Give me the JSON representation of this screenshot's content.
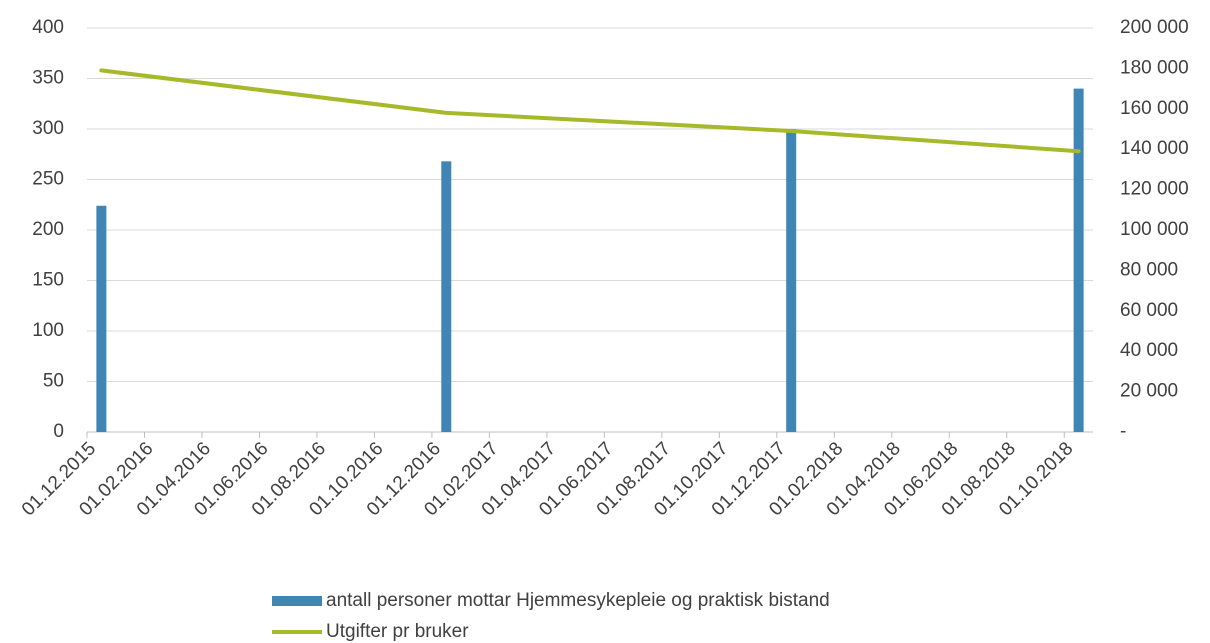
{
  "chart_data": {
    "type": "bar_line",
    "x": [
      "01.12.2015",
      "01.12.2016",
      "01.12.2017",
      "01.10.2018"
    ],
    "xlim": [
      "01.12.2015",
      "01.11.2018"
    ],
    "xticks": [
      "01.12.2015",
      "01.02.2016",
      "01.04.2016",
      "01.06.2016",
      "01.08.2016",
      "01.10.2016",
      "01.12.2016",
      "01.02.2017",
      "01.04.2017",
      "01.06.2017",
      "01.08.2017",
      "01.10.2017",
      "01.12.2017",
      "01.02.2018",
      "01.04.2018",
      "01.06.2018",
      "01.08.2018",
      "01.10.2018"
    ],
    "series": [
      {
        "name": "antall personer mottar Hjemmesykepleie og praktisk bistand",
        "color": "#3f86b4",
        "type": "bar",
        "values": [
          224,
          268,
          300,
          340
        ]
      },
      {
        "name": "Utgifter pr bruker",
        "color": "#a5b92a",
        "type": "line",
        "axis": "y2",
        "values": [
          179000,
          158000,
          149000,
          139000
        ]
      }
    ],
    "ylim": [
      0,
      400
    ],
    "yticks": [
      0,
      50,
      100,
      150,
      200,
      250,
      300,
      350,
      400
    ],
    "y2lim": [
      0,
      200000
    ],
    "y2ticks": [
      {
        "value": 0,
        "label": "-"
      },
      {
        "value": 20000,
        "label": "20 000"
      },
      {
        "value": 40000,
        "label": "40 000"
      },
      {
        "value": 60000,
        "label": "60 000"
      },
      {
        "value": 80000,
        "label": "80 000"
      },
      {
        "value": 100000,
        "label": "100 000"
      },
      {
        "value": 120000,
        "label": "120 000"
      },
      {
        "value": 140000,
        "label": "140 000"
      },
      {
        "value": 160000,
        "label": "160 000"
      },
      {
        "value": 180000,
        "label": "180 000"
      },
      {
        "value": 200000,
        "label": "200 000"
      }
    ],
    "grid": true,
    "legend": "bottom"
  }
}
